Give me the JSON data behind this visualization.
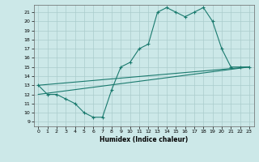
{
  "xlabel": "Humidex (Indice chaleur)",
  "background_color": "#cce8e8",
  "grid_color": "#aacccc",
  "line_color": "#1a7a6e",
  "xlim": [
    -0.5,
    23.5
  ],
  "ylim": [
    8.5,
    21.8
  ],
  "yticks": [
    9,
    10,
    11,
    12,
    13,
    14,
    15,
    16,
    17,
    18,
    19,
    20,
    21
  ],
  "xticks": [
    0,
    1,
    2,
    3,
    4,
    5,
    6,
    7,
    8,
    9,
    10,
    11,
    12,
    13,
    14,
    15,
    16,
    17,
    18,
    19,
    20,
    21,
    22,
    23
  ],
  "series1_x": [
    0,
    1,
    2,
    3,
    4,
    5,
    6,
    7,
    8,
    9,
    10,
    11,
    12,
    13,
    14,
    15,
    16,
    17,
    18,
    19,
    20,
    21,
    22,
    23
  ],
  "series1_y": [
    13,
    12,
    12,
    11.5,
    11,
    10,
    9.5,
    9.5,
    12.5,
    15,
    15.5,
    17,
    17.5,
    21,
    21.5,
    21,
    20.5,
    21,
    21.5,
    20,
    17,
    15,
    15,
    15
  ],
  "line2_x": [
    0,
    23
  ],
  "line2_y": [
    12,
    15
  ],
  "line3_x": [
    0,
    23
  ],
  "line3_y": [
    13,
    15
  ]
}
